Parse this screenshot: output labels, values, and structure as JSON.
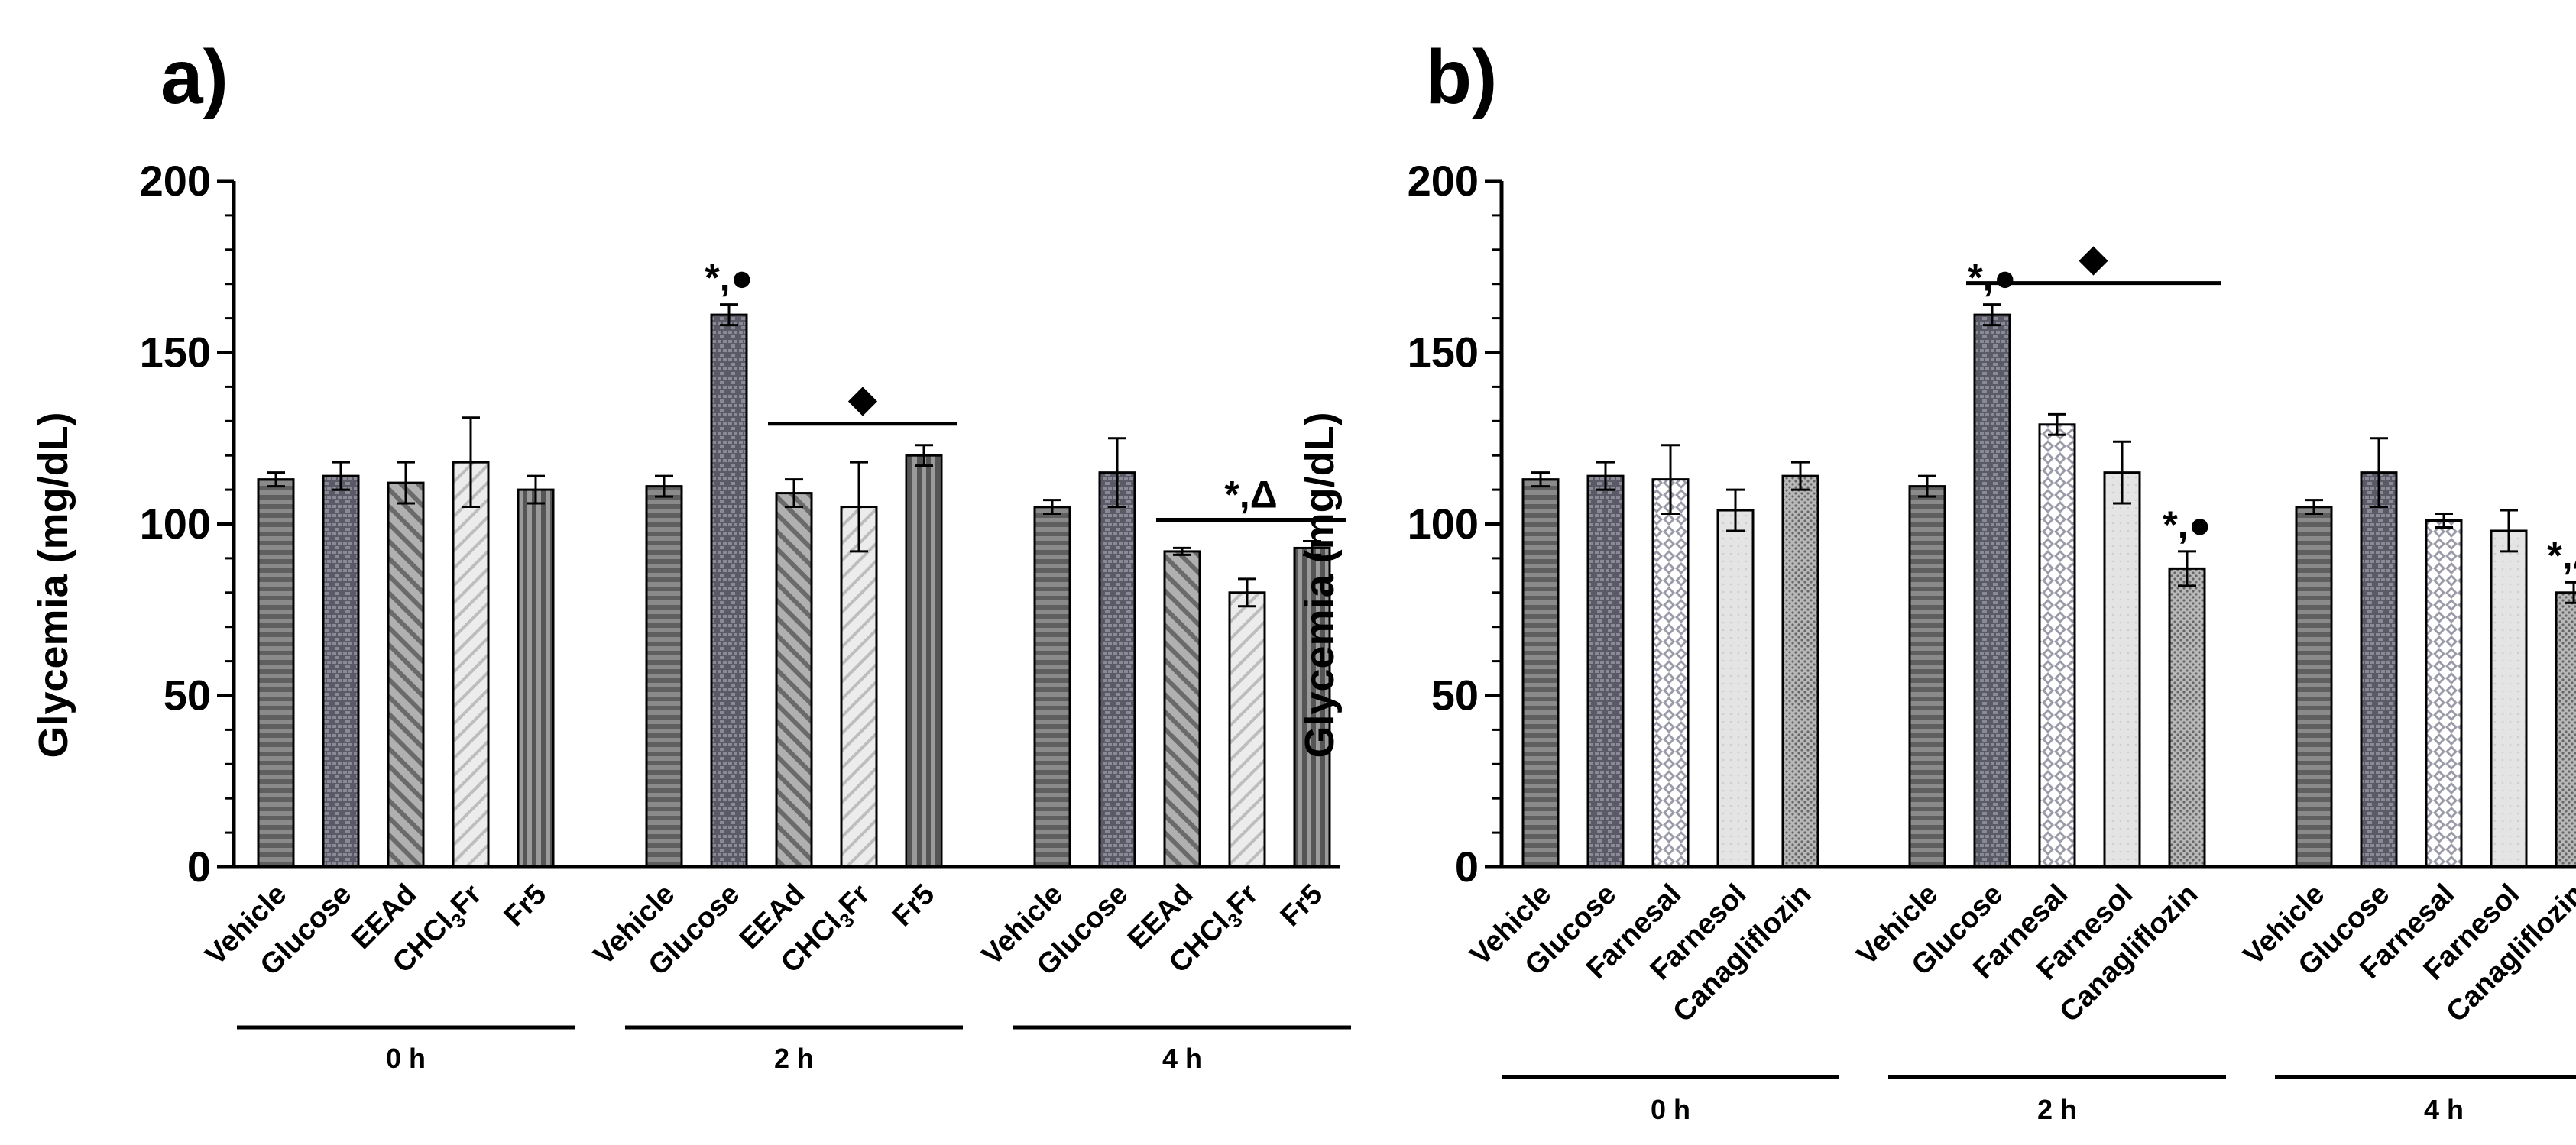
{
  "chart_data": [
    {
      "panel": "a)",
      "type": "bar",
      "ylabel": "Glycemia (mg/dL)",
      "ylim": [
        0,
        200
      ],
      "yticks": [
        "0",
        "50",
        "100",
        "150",
        "200"
      ],
      "groups": [
        {
          "label": "0 h",
          "bars": [
            {
              "label": "Vehicle",
              "value": 113,
              "error": 2
            },
            {
              "label": "Glucose",
              "value": 114,
              "error": 4
            },
            {
              "label": "EEAd",
              "value": 112,
              "error": 6
            },
            {
              "label": "CHCl3Fr",
              "value": 118,
              "error": 13
            },
            {
              "label": "Fr5",
              "value": 110,
              "error": 4
            }
          ]
        },
        {
          "label": "2 h",
          "bars": [
            {
              "label": "Vehicle",
              "value": 111,
              "error": 3
            },
            {
              "label": "Glucose",
              "value": 161,
              "error": 3,
              "annotation": "*,●"
            },
            {
              "label": "EEAd",
              "value": 109,
              "error": 4
            },
            {
              "label": "CHCl3Fr",
              "value": 105,
              "error": 13
            },
            {
              "label": "Fr5",
              "value": 120,
              "error": 3
            }
          ],
          "bracket": {
            "from": 2,
            "to": 4,
            "text": "◆"
          }
        },
        {
          "label": "4 h",
          "bars": [
            {
              "label": "Vehicle",
              "value": 105,
              "error": 2
            },
            {
              "label": "Glucose",
              "value": 115,
              "error": 10
            },
            {
              "label": "EEAd",
              "value": 92,
              "error": 1
            },
            {
              "label": "CHCl3Fr",
              "value": 80,
              "error": 4
            },
            {
              "label": "Fr5",
              "value": 93,
              "error": 2
            }
          ],
          "bracket": {
            "from": 2,
            "to": 4,
            "text": "*,Δ"
          }
        }
      ]
    },
    {
      "panel": "b)",
      "type": "bar",
      "ylabel": "Glycemia (mg/dL)",
      "ylim": [
        0,
        200
      ],
      "yticks": [
        "0",
        "50",
        "100",
        "150",
        "200"
      ],
      "groups": [
        {
          "label": "0 h",
          "bars": [
            {
              "label": "Vehicle",
              "value": 113,
              "error": 2
            },
            {
              "label": "Glucose",
              "value": 114,
              "error": 4
            },
            {
              "label": "Farnesal",
              "value": 113,
              "error": 10
            },
            {
              "label": "Farnesol",
              "value": 104,
              "error": 6
            },
            {
              "label": "Canagliflozin",
              "value": 114,
              "error": 4
            }
          ]
        },
        {
          "label": "2 h",
          "bars": [
            {
              "label": "Vehicle",
              "value": 111,
              "error": 3
            },
            {
              "label": "Glucose",
              "value": 161,
              "error": 3,
              "annotation": "*,●"
            },
            {
              "label": "Farnesal",
              "value": 129,
              "error": 3
            },
            {
              "label": "Farnesol",
              "value": 115,
              "error": 9
            },
            {
              "label": "Canagliflozin",
              "value": 87,
              "error": 5,
              "annotation": "*,●"
            }
          ],
          "bracket": {
            "from": 1,
            "to": 4,
            "text": "◆"
          }
        },
        {
          "label": "4 h",
          "bars": [
            {
              "label": "Vehicle",
              "value": 105,
              "error": 2
            },
            {
              "label": "Glucose",
              "value": 115,
              "error": 10
            },
            {
              "label": "Farnesal",
              "value": 101,
              "error": 2
            },
            {
              "label": "Farnesol",
              "value": 98,
              "error": 6
            },
            {
              "label": "Canagliflozin",
              "value": 80,
              "error": 3,
              "annotation": "*,Δ"
            }
          ]
        }
      ]
    }
  ]
}
